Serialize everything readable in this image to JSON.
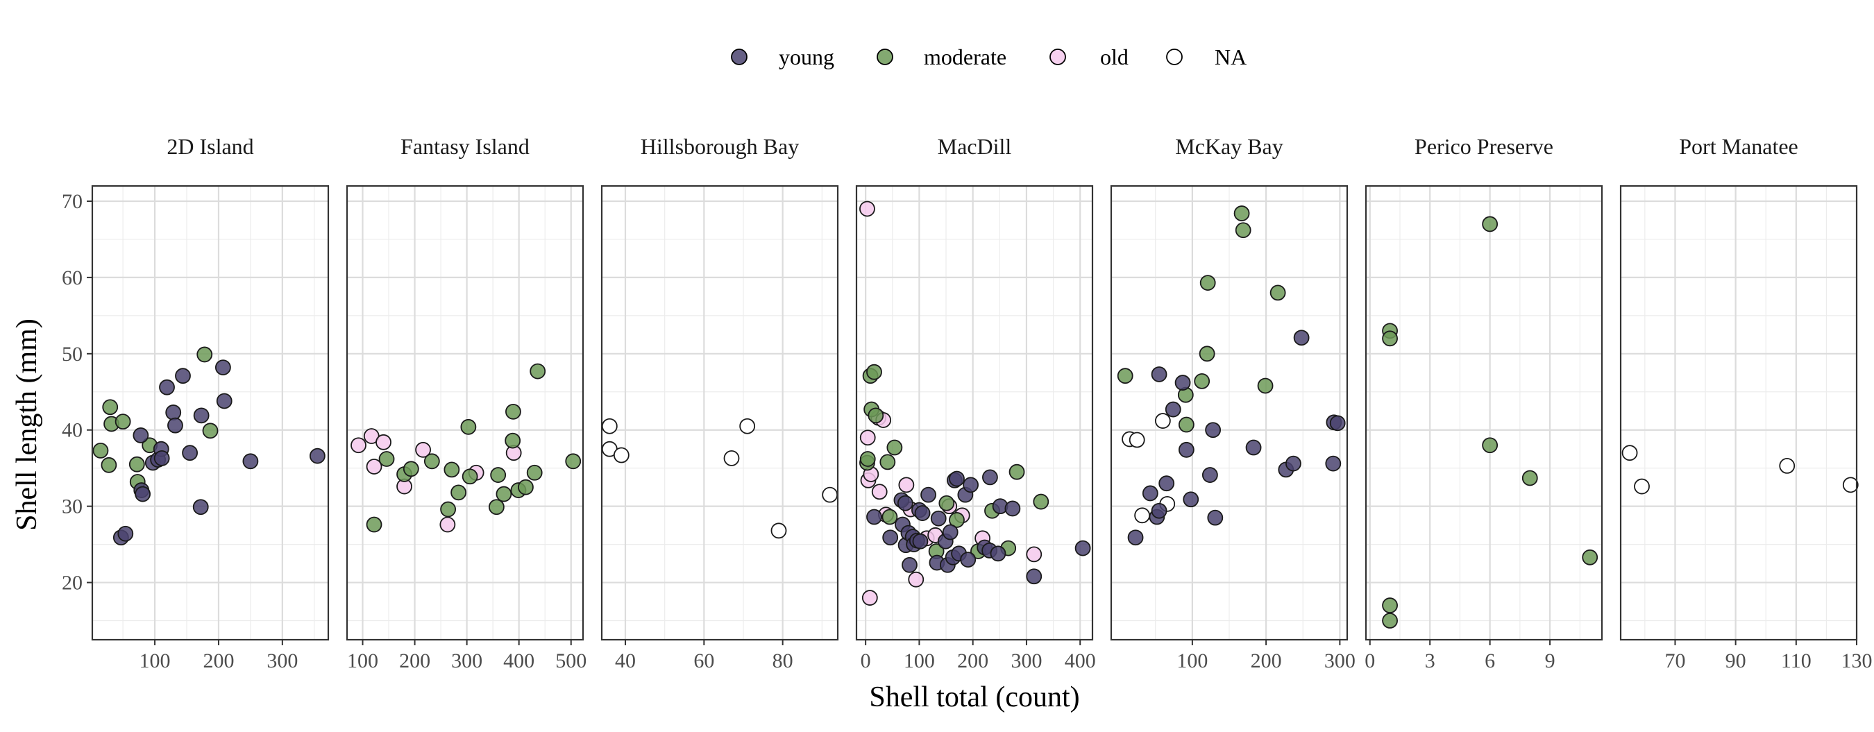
{
  "chart_data": {
    "type": "scatter",
    "title": "",
    "xlabel": "Shell total (count)",
    "ylabel": "Shell length (mm)",
    "y_ticks": [
      20,
      30,
      40,
      50,
      60,
      70
    ],
    "ylim": [
      12.5,
      72
    ],
    "grid": true,
    "legend": {
      "position": "top",
      "entries": [
        {
          "label": "young",
          "color": "#4b4470"
        },
        {
          "label": "moderate",
          "color": "#6d9a58"
        },
        {
          "label": "old",
          "color": "#f5c9ec"
        },
        {
          "label": "NA",
          "color": "#ffffff"
        }
      ]
    },
    "panels": [
      {
        "name": "2D Island",
        "xlim": [
          2,
          372
        ],
        "x_ticks": [
          100,
          200,
          300
        ],
        "points": [
          {
            "x": 15,
            "y": 37.3,
            "g": "moderate"
          },
          {
            "x": 30,
            "y": 43.0,
            "g": "moderate"
          },
          {
            "x": 32,
            "y": 40.8,
            "g": "moderate"
          },
          {
            "x": 28,
            "y": 35.4,
            "g": "moderate"
          },
          {
            "x": 50,
            "y": 41.1,
            "g": "moderate"
          },
          {
            "x": 72,
            "y": 35.5,
            "g": "moderate"
          },
          {
            "x": 73,
            "y": 33.2,
            "g": "moderate"
          },
          {
            "x": 92,
            "y": 38.0,
            "g": "moderate"
          },
          {
            "x": 178,
            "y": 49.9,
            "g": "moderate"
          },
          {
            "x": 187,
            "y": 39.9,
            "g": "moderate"
          },
          {
            "x": 47,
            "y": 25.9,
            "g": "young"
          },
          {
            "x": 54,
            "y": 26.4,
            "g": "young"
          },
          {
            "x": 78,
            "y": 39.3,
            "g": "young"
          },
          {
            "x": 79,
            "y": 32.1,
            "g": "young"
          },
          {
            "x": 81,
            "y": 31.6,
            "g": "young"
          },
          {
            "x": 97,
            "y": 35.7,
            "g": "young"
          },
          {
            "x": 105,
            "y": 36.1,
            "g": "young"
          },
          {
            "x": 110,
            "y": 37.5,
            "g": "young"
          },
          {
            "x": 111,
            "y": 36.3,
            "g": "young"
          },
          {
            "x": 119,
            "y": 45.6,
            "g": "young"
          },
          {
            "x": 129,
            "y": 42.3,
            "g": "young"
          },
          {
            "x": 132,
            "y": 40.6,
            "g": "young"
          },
          {
            "x": 144,
            "y": 47.1,
            "g": "young"
          },
          {
            "x": 155,
            "y": 37.0,
            "g": "young"
          },
          {
            "x": 172,
            "y": 29.9,
            "g": "young"
          },
          {
            "x": 173,
            "y": 41.9,
            "g": "young"
          },
          {
            "x": 207,
            "y": 48.2,
            "g": "young"
          },
          {
            "x": 209,
            "y": 43.8,
            "g": "young"
          },
          {
            "x": 250,
            "y": 35.9,
            "g": "young"
          },
          {
            "x": 355,
            "y": 36.6,
            "g": "young"
          }
        ]
      },
      {
        "name": "Fantasy Island",
        "xlim": [
          70,
          523
        ],
        "x_ticks": [
          100,
          200,
          300,
          400,
          500
        ],
        "points": [
          {
            "x": 92,
            "y": 38.0,
            "g": "old"
          },
          {
            "x": 117,
            "y": 39.2,
            "g": "old"
          },
          {
            "x": 122,
            "y": 35.2,
            "g": "old"
          },
          {
            "x": 140,
            "y": 38.4,
            "g": "old"
          },
          {
            "x": 180,
            "y": 32.6,
            "g": "old"
          },
          {
            "x": 216,
            "y": 37.4,
            "g": "old"
          },
          {
            "x": 263,
            "y": 27.6,
            "g": "old"
          },
          {
            "x": 318,
            "y": 34.4,
            "g": "old"
          },
          {
            "x": 390,
            "y": 37.0,
            "g": "old"
          },
          {
            "x": 122,
            "y": 27.6,
            "g": "moderate"
          },
          {
            "x": 146,
            "y": 36.2,
            "g": "moderate"
          },
          {
            "x": 180,
            "y": 34.2,
            "g": "moderate"
          },
          {
            "x": 193,
            "y": 34.9,
            "g": "moderate"
          },
          {
            "x": 233,
            "y": 35.9,
            "g": "moderate"
          },
          {
            "x": 264,
            "y": 29.6,
            "g": "moderate"
          },
          {
            "x": 271,
            "y": 34.8,
            "g": "moderate"
          },
          {
            "x": 284,
            "y": 31.8,
            "g": "moderate"
          },
          {
            "x": 303,
            "y": 40.4,
            "g": "moderate"
          },
          {
            "x": 306,
            "y": 33.9,
            "g": "moderate"
          },
          {
            "x": 357,
            "y": 29.9,
            "g": "moderate"
          },
          {
            "x": 360,
            "y": 34.1,
            "g": "moderate"
          },
          {
            "x": 371,
            "y": 31.6,
            "g": "moderate"
          },
          {
            "x": 388,
            "y": 38.6,
            "g": "moderate"
          },
          {
            "x": 389,
            "y": 42.4,
            "g": "moderate"
          },
          {
            "x": 399,
            "y": 32.1,
            "g": "moderate"
          },
          {
            "x": 413,
            "y": 32.5,
            "g": "moderate"
          },
          {
            "x": 430,
            "y": 34.4,
            "g": "moderate"
          },
          {
            "x": 436,
            "y": 47.7,
            "g": "moderate"
          },
          {
            "x": 504,
            "y": 35.9,
            "g": "moderate"
          }
        ]
      },
      {
        "name": "Hillsborough Bay",
        "xlim": [
          34,
          94
        ],
        "x_ticks": [
          40,
          60,
          80
        ],
        "points": [
          {
            "x": 36,
            "y": 40.5,
            "g": "NA"
          },
          {
            "x": 36,
            "y": 37.5,
            "g": "NA"
          },
          {
            "x": 39,
            "y": 36.7,
            "g": "NA"
          },
          {
            "x": 67,
            "y": 36.3,
            "g": "NA"
          },
          {
            "x": 71,
            "y": 40.5,
            "g": "NA"
          },
          {
            "x": 79,
            "y": 26.8,
            "g": "NA"
          },
          {
            "x": 92,
            "y": 31.5,
            "g": "NA"
          }
        ]
      },
      {
        "name": "MacDill",
        "xlim": [
          -17,
          423
        ],
        "x_ticks": [
          0,
          100,
          200,
          300,
          400
        ],
        "points": [
          {
            "x": 3,
            "y": 69.0,
            "g": "old"
          },
          {
            "x": 4,
            "y": 39.0,
            "g": "old"
          },
          {
            "x": 5,
            "y": 33.4,
            "g": "old"
          },
          {
            "x": 8,
            "y": 18.0,
            "g": "old"
          },
          {
            "x": 10,
            "y": 34.2,
            "g": "old"
          },
          {
            "x": 24,
            "y": 41.6,
            "g": "old"
          },
          {
            "x": 26,
            "y": 31.9,
            "g": "old"
          },
          {
            "x": 33,
            "y": 41.3,
            "g": "old"
          },
          {
            "x": 38,
            "y": 28.9,
            "g": "old"
          },
          {
            "x": 76,
            "y": 32.8,
            "g": "old"
          },
          {
            "x": 84,
            "y": 29.6,
            "g": "old"
          },
          {
            "x": 94,
            "y": 20.4,
            "g": "old"
          },
          {
            "x": 114,
            "y": 25.8,
            "g": "old"
          },
          {
            "x": 130,
            "y": 26.2,
            "g": "old"
          },
          {
            "x": 156,
            "y": 30.0,
            "g": "old"
          },
          {
            "x": 180,
            "y": 28.8,
            "g": "old"
          },
          {
            "x": 218,
            "y": 25.8,
            "g": "old"
          },
          {
            "x": 314,
            "y": 23.7,
            "g": "old"
          },
          {
            "x": 3,
            "y": 35.7,
            "g": "moderate"
          },
          {
            "x": 4,
            "y": 36.2,
            "g": "moderate"
          },
          {
            "x": 9,
            "y": 47.1,
            "g": "moderate"
          },
          {
            "x": 11,
            "y": 42.7,
            "g": "moderate"
          },
          {
            "x": 16,
            "y": 47.6,
            "g": "moderate"
          },
          {
            "x": 19,
            "y": 41.9,
            "g": "moderate"
          },
          {
            "x": 41,
            "y": 35.8,
            "g": "moderate"
          },
          {
            "x": 45,
            "y": 28.6,
            "g": "moderate"
          },
          {
            "x": 54,
            "y": 37.7,
            "g": "moderate"
          },
          {
            "x": 132,
            "y": 24.1,
            "g": "moderate"
          },
          {
            "x": 151,
            "y": 30.4,
            "g": "moderate"
          },
          {
            "x": 170,
            "y": 28.2,
            "g": "moderate"
          },
          {
            "x": 210,
            "y": 24.1,
            "g": "moderate"
          },
          {
            "x": 236,
            "y": 29.4,
            "g": "moderate"
          },
          {
            "x": 266,
            "y": 24.5,
            "g": "moderate"
          },
          {
            "x": 282,
            "y": 34.5,
            "g": "moderate"
          },
          {
            "x": 327,
            "y": 30.6,
            "g": "moderate"
          },
          {
            "x": 16,
            "y": 28.6,
            "g": "young"
          },
          {
            "x": 46,
            "y": 25.9,
            "g": "young"
          },
          {
            "x": 67,
            "y": 30.8,
            "g": "young"
          },
          {
            "x": 69,
            "y": 27.6,
            "g": "young"
          },
          {
            "x": 74,
            "y": 30.4,
            "g": "young"
          },
          {
            "x": 75,
            "y": 24.9,
            "g": "young"
          },
          {
            "x": 80,
            "y": 26.5,
            "g": "young"
          },
          {
            "x": 82,
            "y": 22.3,
            "g": "young"
          },
          {
            "x": 88,
            "y": 26.0,
            "g": "young"
          },
          {
            "x": 90,
            "y": 25.0,
            "g": "young"
          },
          {
            "x": 96,
            "y": 25.5,
            "g": "young"
          },
          {
            "x": 100,
            "y": 29.5,
            "g": "young"
          },
          {
            "x": 102,
            "y": 25.4,
            "g": "young"
          },
          {
            "x": 106,
            "y": 29.1,
            "g": "young"
          },
          {
            "x": 117,
            "y": 31.5,
            "g": "young"
          },
          {
            "x": 133,
            "y": 22.6,
            "g": "young"
          },
          {
            "x": 136,
            "y": 28.4,
            "g": "young"
          },
          {
            "x": 149,
            "y": 25.4,
            "g": "young"
          },
          {
            "x": 153,
            "y": 22.3,
            "g": "young"
          },
          {
            "x": 158,
            "y": 26.6,
            "g": "young"
          },
          {
            "x": 163,
            "y": 23.3,
            "g": "young"
          },
          {
            "x": 166,
            "y": 33.4,
            "g": "young"
          },
          {
            "x": 170,
            "y": 33.6,
            "g": "young"
          },
          {
            "x": 174,
            "y": 23.8,
            "g": "young"
          },
          {
            "x": 186,
            "y": 31.5,
            "g": "young"
          },
          {
            "x": 191,
            "y": 23.0,
            "g": "young"
          },
          {
            "x": 196,
            "y": 32.8,
            "g": "young"
          },
          {
            "x": 222,
            "y": 24.6,
            "g": "young"
          },
          {
            "x": 231,
            "y": 24.2,
            "g": "young"
          },
          {
            "x": 232,
            "y": 33.8,
            "g": "young"
          },
          {
            "x": 247,
            "y": 23.8,
            "g": "young"
          },
          {
            "x": 251,
            "y": 30.0,
            "g": "young"
          },
          {
            "x": 274,
            "y": 29.7,
            "g": "young"
          },
          {
            "x": 314,
            "y": 20.8,
            "g": "young"
          },
          {
            "x": 405,
            "y": 24.5,
            "g": "young"
          }
        ]
      },
      {
        "name": "McKay Bay",
        "xlim": [
          -10,
          310
        ],
        "x_ticks": [
          100,
          200,
          300
        ],
        "points": [
          {
            "x": 9,
            "y": 47.1,
            "g": "moderate"
          },
          {
            "x": 91,
            "y": 44.6,
            "g": "moderate"
          },
          {
            "x": 92,
            "y": 40.7,
            "g": "moderate"
          },
          {
            "x": 113,
            "y": 46.4,
            "g": "moderate"
          },
          {
            "x": 120,
            "y": 50.0,
            "g": "moderate"
          },
          {
            "x": 121,
            "y": 59.3,
            "g": "moderate"
          },
          {
            "x": 167,
            "y": 68.4,
            "g": "moderate"
          },
          {
            "x": 169,
            "y": 66.2,
            "g": "moderate"
          },
          {
            "x": 199,
            "y": 45.8,
            "g": "moderate"
          },
          {
            "x": 216,
            "y": 58.0,
            "g": "moderate"
          },
          {
            "x": 15,
            "y": 38.8,
            "g": "NA"
          },
          {
            "x": 25,
            "y": 38.7,
            "g": "NA"
          },
          {
            "x": 32,
            "y": 28.8,
            "g": "NA"
          },
          {
            "x": 60,
            "y": 41.2,
            "g": "NA"
          },
          {
            "x": 66,
            "y": 30.3,
            "g": "NA"
          },
          {
            "x": 23,
            "y": 25.9,
            "g": "young"
          },
          {
            "x": 43,
            "y": 31.7,
            "g": "young"
          },
          {
            "x": 52,
            "y": 28.6,
            "g": "young"
          },
          {
            "x": 55,
            "y": 29.4,
            "g": "young"
          },
          {
            "x": 55,
            "y": 47.3,
            "g": "young"
          },
          {
            "x": 65,
            "y": 33.0,
            "g": "young"
          },
          {
            "x": 74,
            "y": 42.7,
            "g": "young"
          },
          {
            "x": 87,
            "y": 46.2,
            "g": "young"
          },
          {
            "x": 92,
            "y": 37.4,
            "g": "young"
          },
          {
            "x": 98,
            "y": 30.9,
            "g": "young"
          },
          {
            "x": 124,
            "y": 34.1,
            "g": "young"
          },
          {
            "x": 128,
            "y": 40.0,
            "g": "young"
          },
          {
            "x": 131,
            "y": 28.5,
            "g": "young"
          },
          {
            "x": 183,
            "y": 37.7,
            "g": "young"
          },
          {
            "x": 227,
            "y": 34.8,
            "g": "young"
          },
          {
            "x": 237,
            "y": 35.6,
            "g": "young"
          },
          {
            "x": 248,
            "y": 52.1,
            "g": "young"
          },
          {
            "x": 291,
            "y": 35.6,
            "g": "young"
          },
          {
            "x": 292,
            "y": 41.0,
            "g": "young"
          },
          {
            "x": 297,
            "y": 40.9,
            "g": "young"
          }
        ]
      },
      {
        "name": "Perico Preserve",
        "xlim": [
          -0.2,
          11.6
        ],
        "x_ticks": [
          0,
          3,
          6,
          9
        ],
        "points": [
          {
            "x": 1,
            "y": 53.0,
            "g": "moderate"
          },
          {
            "x": 1,
            "y": 52.0,
            "g": "moderate"
          },
          {
            "x": 1,
            "y": 17.0,
            "g": "moderate"
          },
          {
            "x": 1,
            "y": 15.0,
            "g": "moderate"
          },
          {
            "x": 6,
            "y": 67.0,
            "g": "moderate"
          },
          {
            "x": 6,
            "y": 38.0,
            "g": "moderate"
          },
          {
            "x": 8,
            "y": 33.7,
            "g": "moderate"
          },
          {
            "x": 11,
            "y": 23.3,
            "g": "moderate"
          }
        ]
      },
      {
        "name": "Port Manatee",
        "xlim": [
          52,
          130
        ],
        "x_ticks": [
          70,
          90,
          110,
          130
        ],
        "points": [
          {
            "x": 55,
            "y": 37.0,
            "g": "NA"
          },
          {
            "x": 59,
            "y": 32.6,
            "g": "NA"
          },
          {
            "x": 107,
            "y": 35.3,
            "g": "NA"
          },
          {
            "x": 128,
            "y": 32.8,
            "g": "NA"
          }
        ]
      }
    ]
  }
}
